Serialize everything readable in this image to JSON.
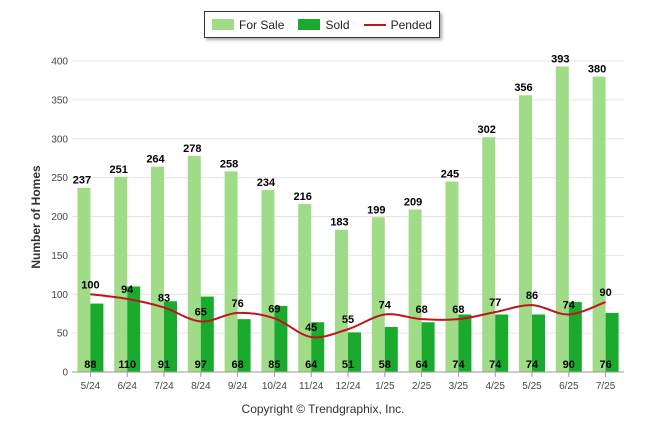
{
  "chart_data": {
    "type": "bar",
    "categories": [
      "5/24",
      "6/24",
      "7/24",
      "8/24",
      "9/24",
      "10/24",
      "11/24",
      "12/24",
      "1/25",
      "2/25",
      "3/25",
      "4/25",
      "5/25",
      "6/25",
      "7/25"
    ],
    "series": [
      {
        "name": "For Sale",
        "type": "bar",
        "color": "#a0dc88",
        "values": [
          237,
          251,
          264,
          278,
          258,
          234,
          216,
          183,
          199,
          209,
          245,
          302,
          356,
          393,
          380
        ]
      },
      {
        "name": "Sold",
        "type": "bar",
        "color": "#1aab2e",
        "values": [
          88,
          110,
          91,
          97,
          68,
          85,
          64,
          51,
          58,
          64,
          74,
          74,
          74,
          90,
          76
        ]
      },
      {
        "name": "Pended",
        "type": "line",
        "color": "#c0141e",
        "values": [
          100,
          94,
          83,
          65,
          76,
          69,
          45,
          55,
          74,
          68,
          68,
          77,
          86,
          74,
          90
        ]
      }
    ],
    "ylabel": "Number of Homes",
    "ylim": [
      0,
      400
    ],
    "yticks": [
      0,
      50,
      100,
      150,
      200,
      250,
      300,
      350,
      400
    ],
    "grid": true,
    "legend_position": "top-center"
  },
  "legend": {
    "for_sale": "For Sale",
    "sold": "Sold",
    "pended": "Pended"
  },
  "footer": {
    "copyright": "Copyright © Trendgraphix, Inc."
  }
}
